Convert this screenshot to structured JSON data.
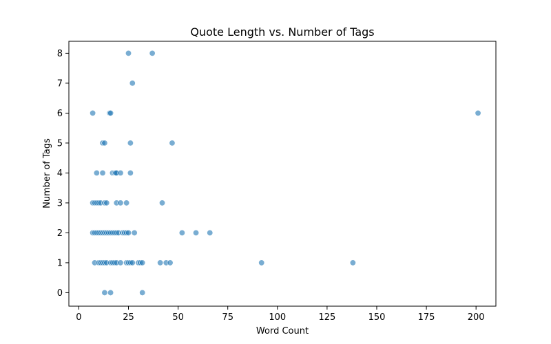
{
  "chart_data": {
    "type": "scatter",
    "title": "Quote Length vs. Number of Tags",
    "xlabel": "Word Count",
    "ylabel": "Number of Tags",
    "xlim": [
      -5,
      210
    ],
    "ylim": [
      -0.45,
      8.4
    ],
    "xticks": [
      0,
      25,
      50,
      75,
      100,
      125,
      150,
      175,
      200
    ],
    "yticks": [
      0,
      1,
      2,
      3,
      4,
      5,
      6,
      7,
      8
    ],
    "grid": false,
    "legend": "none",
    "colors": {
      "point_fill": "#1f77b4",
      "point_edge": "#ffffff",
      "axis": "#000000"
    },
    "series": [
      {
        "points": [
          [
            25,
            8
          ],
          [
            37,
            8
          ],
          [
            27,
            7
          ],
          [
            7,
            6
          ],
          [
            15.5,
            6
          ],
          [
            16,
            6
          ],
          [
            201,
            6
          ],
          [
            12,
            5
          ],
          [
            13,
            5
          ],
          [
            26,
            5
          ],
          [
            47,
            5
          ],
          [
            9,
            4
          ],
          [
            12,
            4
          ],
          [
            17,
            4
          ],
          [
            18,
            4
          ],
          [
            18.5,
            4
          ],
          [
            19,
            4
          ],
          [
            21,
            4
          ],
          [
            26,
            4
          ],
          [
            7,
            3
          ],
          [
            8,
            3
          ],
          [
            9,
            3
          ],
          [
            10,
            3
          ],
          [
            11,
            3
          ],
          [
            13,
            3
          ],
          [
            14,
            3
          ],
          [
            19,
            3
          ],
          [
            21,
            3
          ],
          [
            24,
            3
          ],
          [
            42,
            3
          ],
          [
            7,
            2
          ],
          [
            8,
            2
          ],
          [
            9,
            2
          ],
          [
            10,
            2
          ],
          [
            11,
            2
          ],
          [
            12,
            2
          ],
          [
            13,
            2
          ],
          [
            14,
            2
          ],
          [
            15,
            2
          ],
          [
            16,
            2
          ],
          [
            17,
            2
          ],
          [
            18,
            2
          ],
          [
            19,
            2
          ],
          [
            20,
            2
          ],
          [
            22,
            2
          ],
          [
            23,
            2
          ],
          [
            24,
            2
          ],
          [
            25,
            2
          ],
          [
            28,
            2
          ],
          [
            52,
            2
          ],
          [
            59,
            2
          ],
          [
            66,
            2
          ],
          [
            8,
            1
          ],
          [
            10,
            1
          ],
          [
            11,
            1
          ],
          [
            12,
            1
          ],
          [
            13,
            1
          ],
          [
            14,
            1
          ],
          [
            16,
            1
          ],
          [
            17,
            1
          ],
          [
            18,
            1
          ],
          [
            19,
            1
          ],
          [
            21,
            1
          ],
          [
            24,
            1
          ],
          [
            25,
            1
          ],
          [
            26,
            1
          ],
          [
            27,
            1
          ],
          [
            30,
            1
          ],
          [
            31,
            1
          ],
          [
            32,
            1
          ],
          [
            41,
            1
          ],
          [
            44,
            1
          ],
          [
            46,
            1
          ],
          [
            92,
            1
          ],
          [
            138,
            1
          ],
          [
            13,
            0
          ],
          [
            16,
            0
          ],
          [
            32,
            0
          ]
        ]
      }
    ]
  }
}
